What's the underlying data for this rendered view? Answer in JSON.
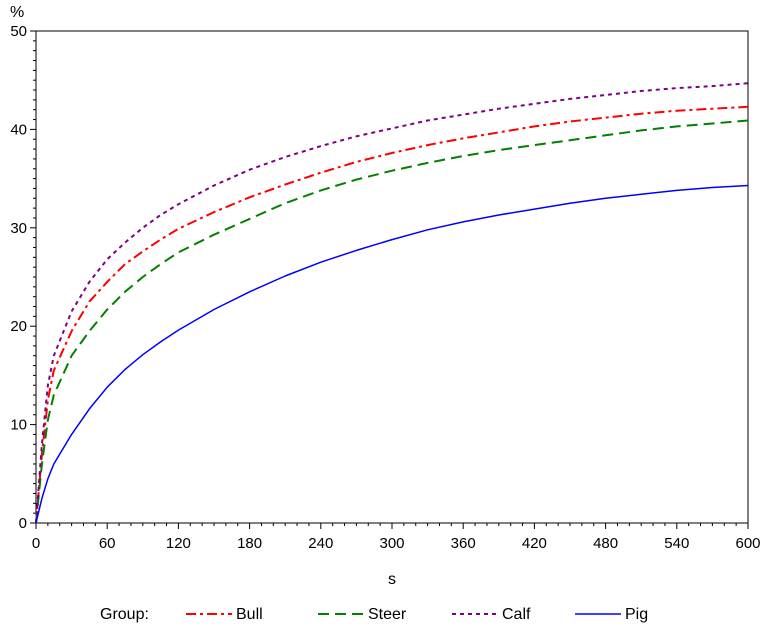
{
  "chart_data": {
    "type": "line",
    "title": "",
    "xlabel": "s",
    "ylabel": "%",
    "xlim": [
      0,
      600
    ],
    "ylim": [
      0,
      50
    ],
    "xticks": [
      0,
      60,
      120,
      180,
      240,
      300,
      360,
      420,
      480,
      540,
      600
    ],
    "yticks": [
      0,
      10,
      20,
      30,
      40,
      50
    ],
    "grid": false,
    "legend": {
      "title": "Group:",
      "placement": "bottom"
    },
    "series": [
      {
        "name": "Bull",
        "color": "#ff0000",
        "dash": "dash-dot",
        "x": [
          0,
          5,
          10,
          15,
          30,
          45,
          60,
          75,
          90,
          105,
          120,
          150,
          180,
          210,
          240,
          270,
          300,
          330,
          360,
          390,
          420,
          450,
          480,
          510,
          540,
          570,
          600
        ],
        "y": [
          0,
          7,
          12.5,
          15.5,
          19.5,
          22.5,
          24.5,
          26.3,
          27.6,
          28.8,
          29.9,
          31.6,
          33.1,
          34.4,
          35.6,
          36.7,
          37.6,
          38.4,
          39.1,
          39.7,
          40.3,
          40.8,
          41.2,
          41.6,
          41.9,
          42.1,
          42.3
        ]
      },
      {
        "name": "Steer",
        "color": "#008000",
        "dash": "dash",
        "x": [
          0,
          5,
          10,
          15,
          30,
          45,
          60,
          75,
          90,
          105,
          120,
          150,
          180,
          210,
          240,
          270,
          300,
          330,
          360,
          390,
          420,
          450,
          480,
          510,
          540,
          570,
          600
        ],
        "y": [
          0,
          6,
          10.5,
          13,
          17,
          19.5,
          21.7,
          23.5,
          25,
          26.3,
          27.5,
          29.3,
          30.9,
          32.5,
          33.8,
          34.9,
          35.8,
          36.6,
          37.3,
          37.9,
          38.4,
          38.9,
          39.4,
          39.9,
          40.3,
          40.6,
          40.9
        ]
      },
      {
        "name": "Calf",
        "color": "#800080",
        "dash": "dot",
        "x": [
          0,
          5,
          10,
          15,
          30,
          45,
          60,
          75,
          90,
          105,
          120,
          150,
          180,
          210,
          240,
          270,
          300,
          330,
          360,
          390,
          420,
          450,
          480,
          510,
          540,
          570,
          600
        ],
        "y": [
          0,
          8,
          14,
          17,
          21.5,
          24.5,
          26.8,
          28.5,
          30,
          31.3,
          32.4,
          34.3,
          35.9,
          37.2,
          38.3,
          39.3,
          40.1,
          40.9,
          41.5,
          42.1,
          42.6,
          43.1,
          43.5,
          43.9,
          44.2,
          44.4,
          44.7
        ]
      },
      {
        "name": "Pig",
        "color": "#0000ff",
        "dash": "solid",
        "x": [
          0,
          5,
          10,
          15,
          30,
          45,
          60,
          75,
          90,
          105,
          120,
          150,
          180,
          210,
          240,
          270,
          300,
          330,
          360,
          390,
          420,
          450,
          480,
          510,
          540,
          570,
          600
        ],
        "y": [
          0,
          2.5,
          4.5,
          6,
          9,
          11.6,
          13.8,
          15.6,
          17.1,
          18.4,
          19.6,
          21.7,
          23.5,
          25.1,
          26.5,
          27.7,
          28.8,
          29.8,
          30.6,
          31.3,
          31.9,
          32.5,
          33,
          33.4,
          33.8,
          34.1,
          34.3
        ]
      }
    ]
  }
}
